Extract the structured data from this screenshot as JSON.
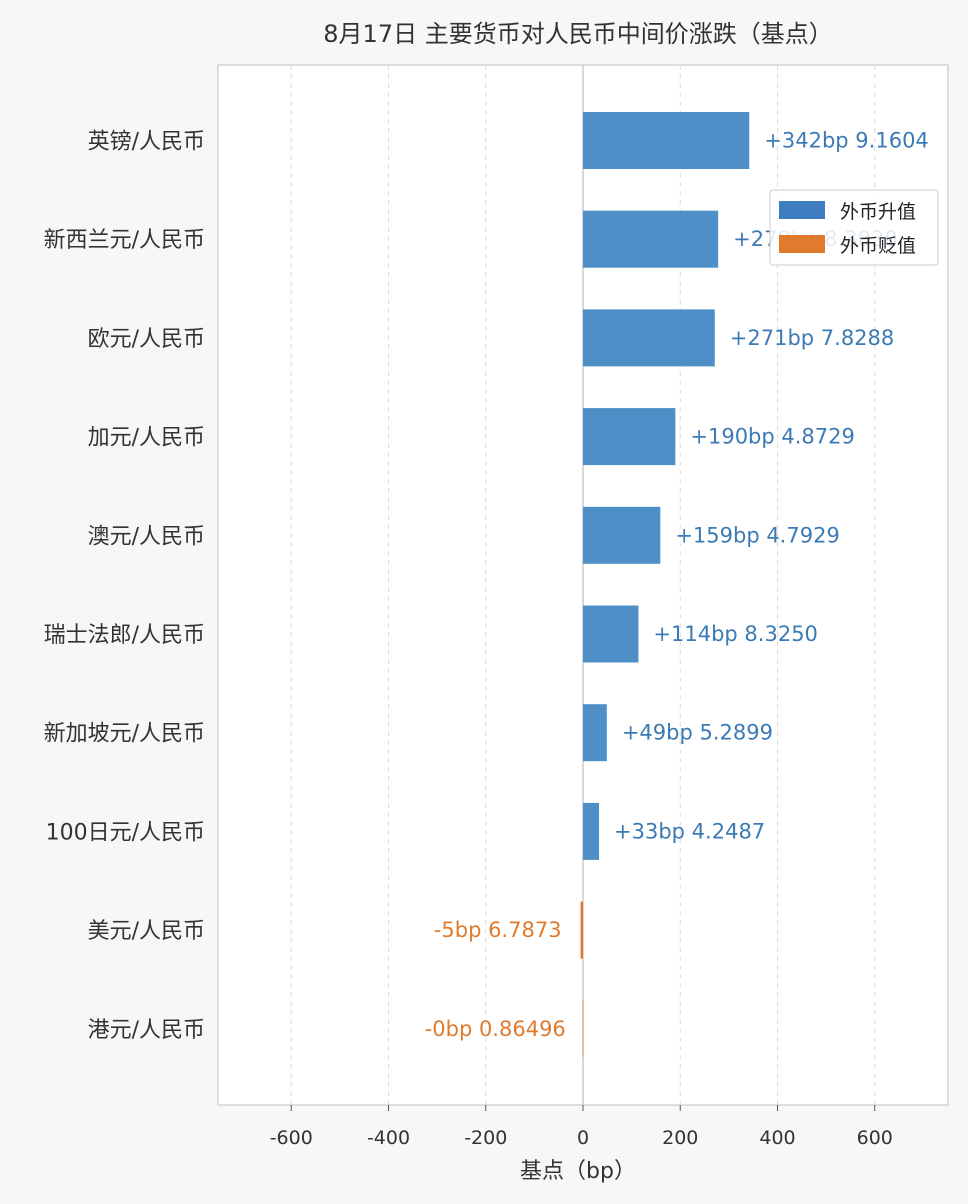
{
  "colors": {
    "up": "#4f8fc8",
    "down": "#e07b2d",
    "up_text": "#3c7ab5",
    "down_text": "#e07b2d",
    "legend_up": "#3d7dc0",
    "legend_down": "#e07b2d",
    "plot_bg": "#ffffff",
    "page_bg": "#f6f7f9"
  },
  "chart_data": {
    "type": "bar",
    "orientation": "horizontal",
    "title": "8月17日 主要货币对人民币中间价涨跌（基点）",
    "xlabel": "基点（bp）",
    "ylabel": "",
    "xlim": [
      -750,
      750
    ],
    "xticks": [
      -600,
      -400,
      -200,
      0,
      200,
      400,
      600
    ],
    "xtick_labels": [
      "-600",
      "-400",
      "-200",
      "0",
      "200",
      "400",
      "600"
    ],
    "grid": "vertical-dashed",
    "legend_position": "top-right",
    "legend": [
      {
        "key": "up",
        "label": "外币升值"
      },
      {
        "key": "down",
        "label": "外币贬值"
      }
    ],
    "categories": [
      "英镑/人民币",
      "新西兰元/人民币",
      "欧元/人民币",
      "加元/人民币",
      "澳元/人民币",
      "瑞士法郎/人民币",
      "新加坡元/人民币",
      "100日元/人民币",
      "美元/人民币",
      "港元/人民币"
    ],
    "values": [
      342,
      278,
      271,
      190,
      159,
      114,
      49,
      33,
      -5,
      -0.4
    ],
    "direction": [
      "up",
      "up",
      "up",
      "up",
      "up",
      "up",
      "up",
      "up",
      "down",
      "down"
    ],
    "value_labels": [
      "+342bp",
      "+278bp",
      "+271bp",
      "+190bp",
      "+159bp",
      "+114bp",
      "+49bp",
      "+33bp",
      "-5bp",
      "-0bp"
    ],
    "rates": [
      "9.1604",
      "8.3030",
      "7.8288",
      "4.8729",
      "4.7929",
      "8.3250",
      "5.2899",
      "4.2487",
      "6.7873",
      "0.86496"
    ]
  }
}
